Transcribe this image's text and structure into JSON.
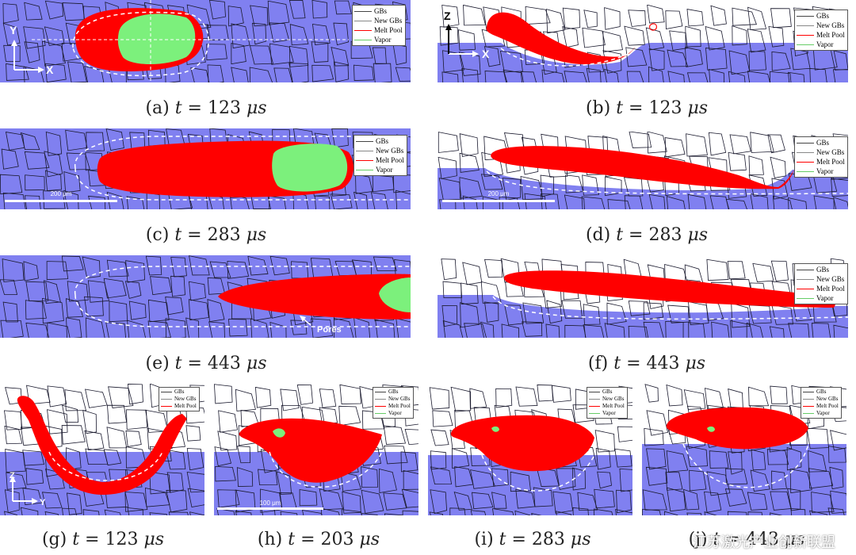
{
  "legend": {
    "items": [
      {
        "label": "GBs",
        "color": "#444444"
      },
      {
        "label": "New GBs",
        "color": "#888888"
      },
      {
        "label": "Melt Pool",
        "color": "#ff0000"
      },
      {
        "label": "Vapor",
        "color": "#66cc66"
      }
    ],
    "items_short": [
      {
        "label": "GBs",
        "color": "#444444"
      },
      {
        "label": "New GBs",
        "color": "#888888"
      },
      {
        "label": "Melt Pool",
        "color": "#ff0000"
      }
    ]
  },
  "colors": {
    "substrate": "#8080f0",
    "melt": "#ff0000",
    "vapor": "#7cf07c",
    "grain": "#1a1a2e"
  },
  "captions": {
    "a": {
      "prefix": "(a) ",
      "var": "t",
      "value": " = 123 ",
      "unit": "μs"
    },
    "b": {
      "prefix": "(b) ",
      "var": "t",
      "value": " = 123 ",
      "unit": "μs"
    },
    "c": {
      "prefix": "(c) ",
      "var": "t",
      "value": " = 283 ",
      "unit": "μs"
    },
    "d": {
      "prefix": "(d) ",
      "var": "t",
      "value": " = 283 ",
      "unit": "μs"
    },
    "e": {
      "prefix": "(e) ",
      "var": "t",
      "value": " = 443 ",
      "unit": "μs"
    },
    "f": {
      "prefix": "(f) ",
      "var": "t",
      "value": " = 443 ",
      "unit": "μs"
    },
    "g": {
      "prefix": "(g) ",
      "var": "t",
      "value": " = 123 ",
      "unit": "μs"
    },
    "h": {
      "prefix": "(h) ",
      "var": "t",
      "value": " = 203 ",
      "unit": "μs"
    },
    "i": {
      "prefix": "(i) ",
      "var": "t",
      "value": " = 283 ",
      "unit": "μs"
    },
    "j": {
      "prefix": "(j) ",
      "var": "t",
      "value": " = 443 ",
      "unit": "μs"
    }
  },
  "axes": {
    "y": "Y",
    "x": "X",
    "z": "Z"
  },
  "scalebars": {
    "c": "200 μm",
    "d": "200 μm",
    "h": "100 μm"
  },
  "annotations": {
    "pores": "Pores"
  },
  "watermark": "江苏激光产业创新联盟"
}
